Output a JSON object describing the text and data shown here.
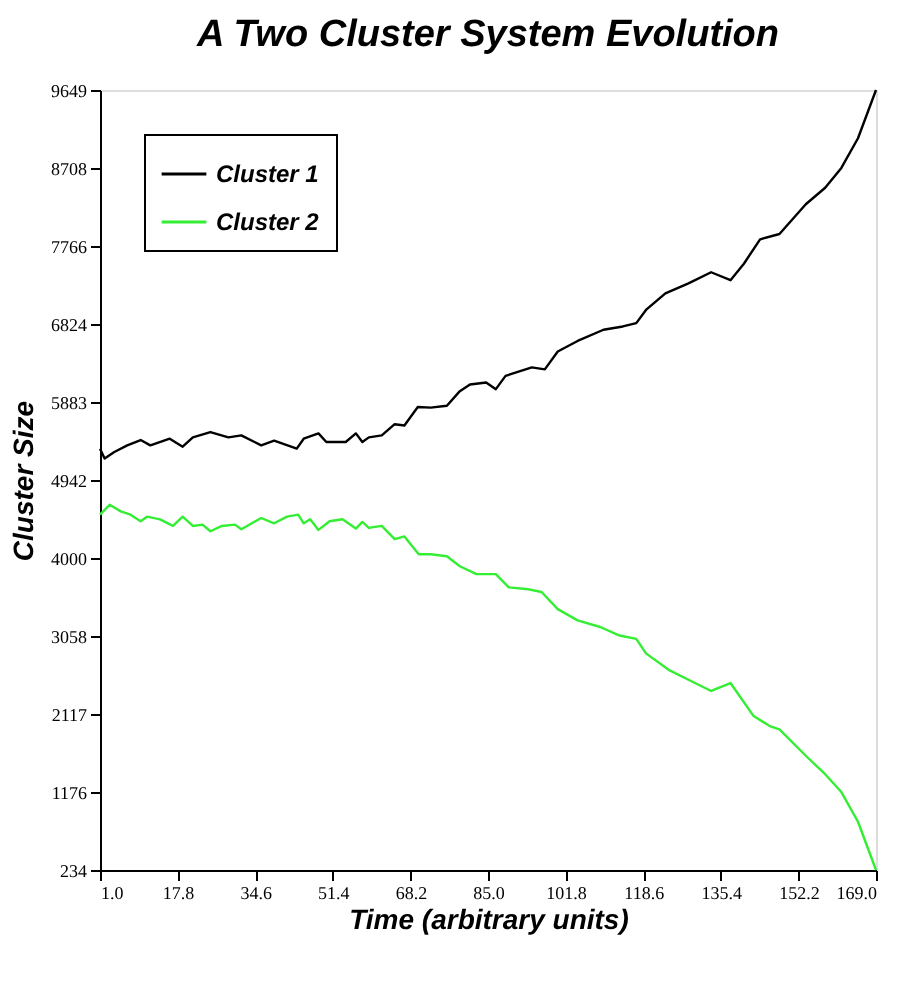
{
  "chart_data": {
    "type": "line",
    "title": "A Two Cluster System Evolution",
    "xlabel": "Time (arbitrary units)",
    "ylabel": "Cluster Size",
    "xlim": [
      1,
      169
    ],
    "ylim": [
      234,
      9649
    ],
    "xticks": [
      {
        "value": 1,
        "label": "1.0"
      },
      {
        "value": 17.8,
        "label": "17.8"
      },
      {
        "value": 34.6,
        "label": "34.6"
      },
      {
        "value": 51.4,
        "label": "51.4"
      },
      {
        "value": 68.2,
        "label": "68.2"
      },
      {
        "value": 85,
        "label": "85.0"
      },
      {
        "value": 101.8,
        "label": "101.8"
      },
      {
        "value": 118.6,
        "label": "118.6"
      },
      {
        "value": 135.4,
        "label": "135.4"
      },
      {
        "value": 152.2,
        "label": "152.2"
      },
      {
        "value": 169,
        "label": "169.0"
      }
    ],
    "yticks": [
      234,
      1176,
      2117,
      3058,
      4000,
      4942,
      5883,
      6824,
      7766,
      8708,
      9649
    ],
    "grid": false,
    "legend": "top left",
    "line_style": "solid",
    "series": [
      {
        "name": "Cluster 1",
        "color": "#000000",
        "x": [
          1.0,
          2.0,
          4.1,
          6.9,
          9.8,
          11.9,
          16.1,
          18.9,
          21.1,
          24.9,
          28.8,
          31.6,
          35.9,
          38.7,
          43.6,
          45.1,
          48.3,
          50.0,
          54.2,
          56.4,
          57.8,
          59.2,
          62.0,
          64.8,
          66.9,
          69.8,
          72.6,
          76.1,
          78.9,
          81.1,
          84.6,
          86.7,
          88.8,
          94.5,
          97.3,
          100.1,
          104.4,
          110.0,
          114.2,
          117.1,
          119.2,
          123.4,
          128.4,
          133.3,
          137.5,
          140.4,
          143.9,
          148.1,
          153.8,
          158.0,
          161.5,
          165.1,
          169.0
        ],
        "values": [
          5320,
          5200,
          5280,
          5360,
          5424,
          5360,
          5440,
          5344,
          5456,
          5520,
          5456,
          5480,
          5360,
          5416,
          5320,
          5440,
          5504,
          5400,
          5400,
          5504,
          5400,
          5456,
          5480,
          5615,
          5600,
          5823,
          5815,
          5838,
          6014,
          6094,
          6118,
          6038,
          6198,
          6301,
          6277,
          6492,
          6620,
          6755,
          6795,
          6835,
          6994,
          7194,
          7314,
          7449,
          7353,
          7552,
          7847,
          7911,
          8270,
          8469,
          8708,
          9067,
          9649
        ]
      },
      {
        "name": "Cluster 2",
        "color": "#33ee33",
        "x": [
          1.0,
          3.1,
          5.5,
          7.6,
          9.8,
          11.2,
          14.0,
          16.8,
          18.9,
          21.1,
          23.2,
          24.9,
          27.4,
          30.2,
          31.6,
          35.9,
          38.7,
          41.5,
          43.9,
          45.1,
          46.5,
          48.3,
          50.7,
          53.5,
          56.4,
          57.8,
          59.2,
          62.0,
          64.8,
          66.9,
          70.0,
          72.6,
          76.1,
          78.9,
          82.5,
          86.7,
          89.5,
          93.8,
          96.6,
          100.1,
          104.4,
          109.3,
          113.5,
          117.1,
          119.2,
          124.1,
          128.4,
          133.3,
          137.5,
          142.5,
          146.0,
          148.1,
          153.8,
          158.0,
          161.5,
          165.1,
          169.0
        ],
        "values": [
          4523,
          4643,
          4563,
          4523,
          4443,
          4499,
          4467,
          4387,
          4499,
          4387,
          4403,
          4323,
          4387,
          4403,
          4347,
          4483,
          4419,
          4499,
          4523,
          4419,
          4467,
          4339,
          4443,
          4467,
          4355,
          4435,
          4363,
          4387,
          4228,
          4260,
          4045,
          4045,
          4021,
          3900,
          3805,
          3805,
          3646,
          3622,
          3590,
          3383,
          3247,
          3167,
          3064,
          3024,
          2849,
          2650,
          2530,
          2395,
          2491,
          2092,
          1972,
          1932,
          1613,
          1390,
          1175,
          816,
          234
        ]
      }
    ]
  }
}
